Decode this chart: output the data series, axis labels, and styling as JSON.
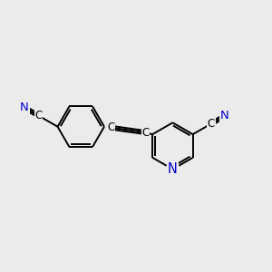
{
  "background_color": "#ebebeb",
  "bond_color": "#000000",
  "N_color": "#0000cc",
  "C_color": "#000000",
  "figsize": [
    3.0,
    3.0
  ],
  "dpi": 100,
  "bond_lw": 1.4,
  "font_size": 8.5,
  "font_size_N": 9.5,
  "ring_r": 0.55,
  "dbo": 0.055,
  "xlim": [
    -3.5,
    2.8
  ],
  "ylim": [
    -1.4,
    1.4
  ]
}
